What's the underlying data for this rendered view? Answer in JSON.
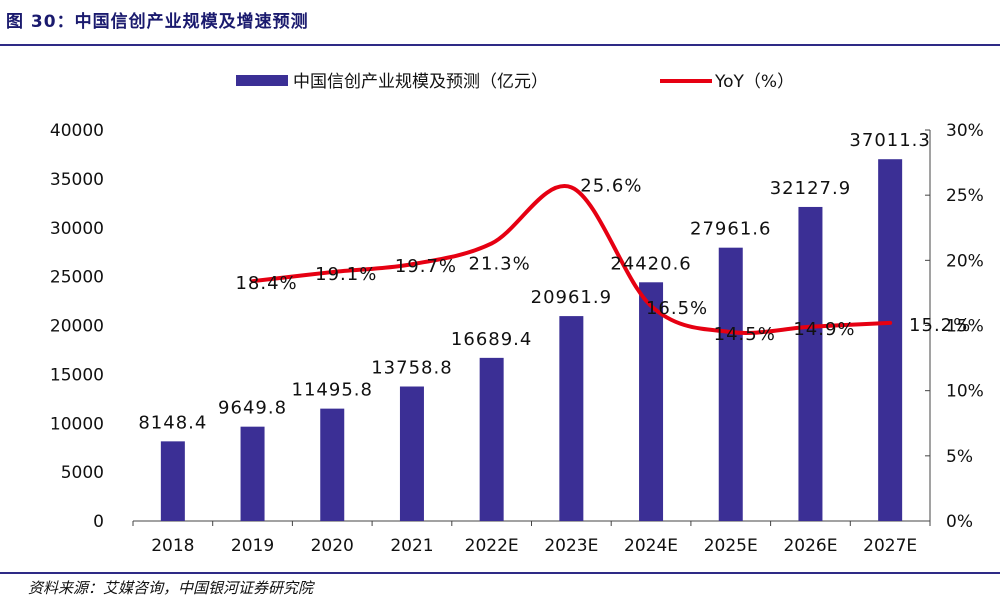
{
  "figure": {
    "title": "图 30：中国信创产业规模及增速预测",
    "source": "资料来源：艾媒咨询，中国银河证券研究院"
  },
  "colors": {
    "bar": "#3b2f95",
    "line": "#e60012",
    "accent_rule": "#2e2a86",
    "text": "#111111"
  },
  "chart_data": {
    "type": "bar",
    "categories": [
      "2018",
      "2019",
      "2020",
      "2021",
      "2022E",
      "2023E",
      "2024E",
      "2025E",
      "2026E",
      "2027E"
    ],
    "series": [
      {
        "name": "中国信创产业规模及预测（亿元）",
        "type": "bar",
        "axis": "left",
        "values": [
          8148.4,
          9649.8,
          11495.8,
          13758.8,
          16689.4,
          20961.9,
          24420.6,
          27961.6,
          32127.9,
          37011.3
        ],
        "labels": [
          "8148.4",
          "9649.8",
          "11495.8",
          "13758.8",
          "16689.4",
          "20961.9",
          "24420.6",
          "27961.6",
          "32127.9",
          "37011.3"
        ]
      },
      {
        "name": "YoY（%）",
        "type": "line",
        "axis": "right",
        "smooth": true,
        "values": [
          null,
          18.4,
          19.1,
          19.7,
          21.3,
          25.6,
          16.5,
          14.5,
          14.9,
          15.2
        ],
        "labels": [
          null,
          "18.4%",
          "19.1%",
          "19.7%",
          "21.3%",
          "25.6%",
          "16.5%",
          "14.5%",
          "14.9%",
          "15.2%"
        ]
      }
    ],
    "left_axis": {
      "min": 0,
      "max": 40000,
      "ticks": [
        "0",
        "5000",
        "10000",
        "15000",
        "20000",
        "25000",
        "30000",
        "35000",
        "40000"
      ]
    },
    "right_axis": {
      "min": 0,
      "max": 30,
      "ticks": [
        "0%",
        "5%",
        "10%",
        "15%",
        "20%",
        "25%",
        "30%"
      ]
    },
    "grid": false,
    "legend_position": "top-center"
  }
}
